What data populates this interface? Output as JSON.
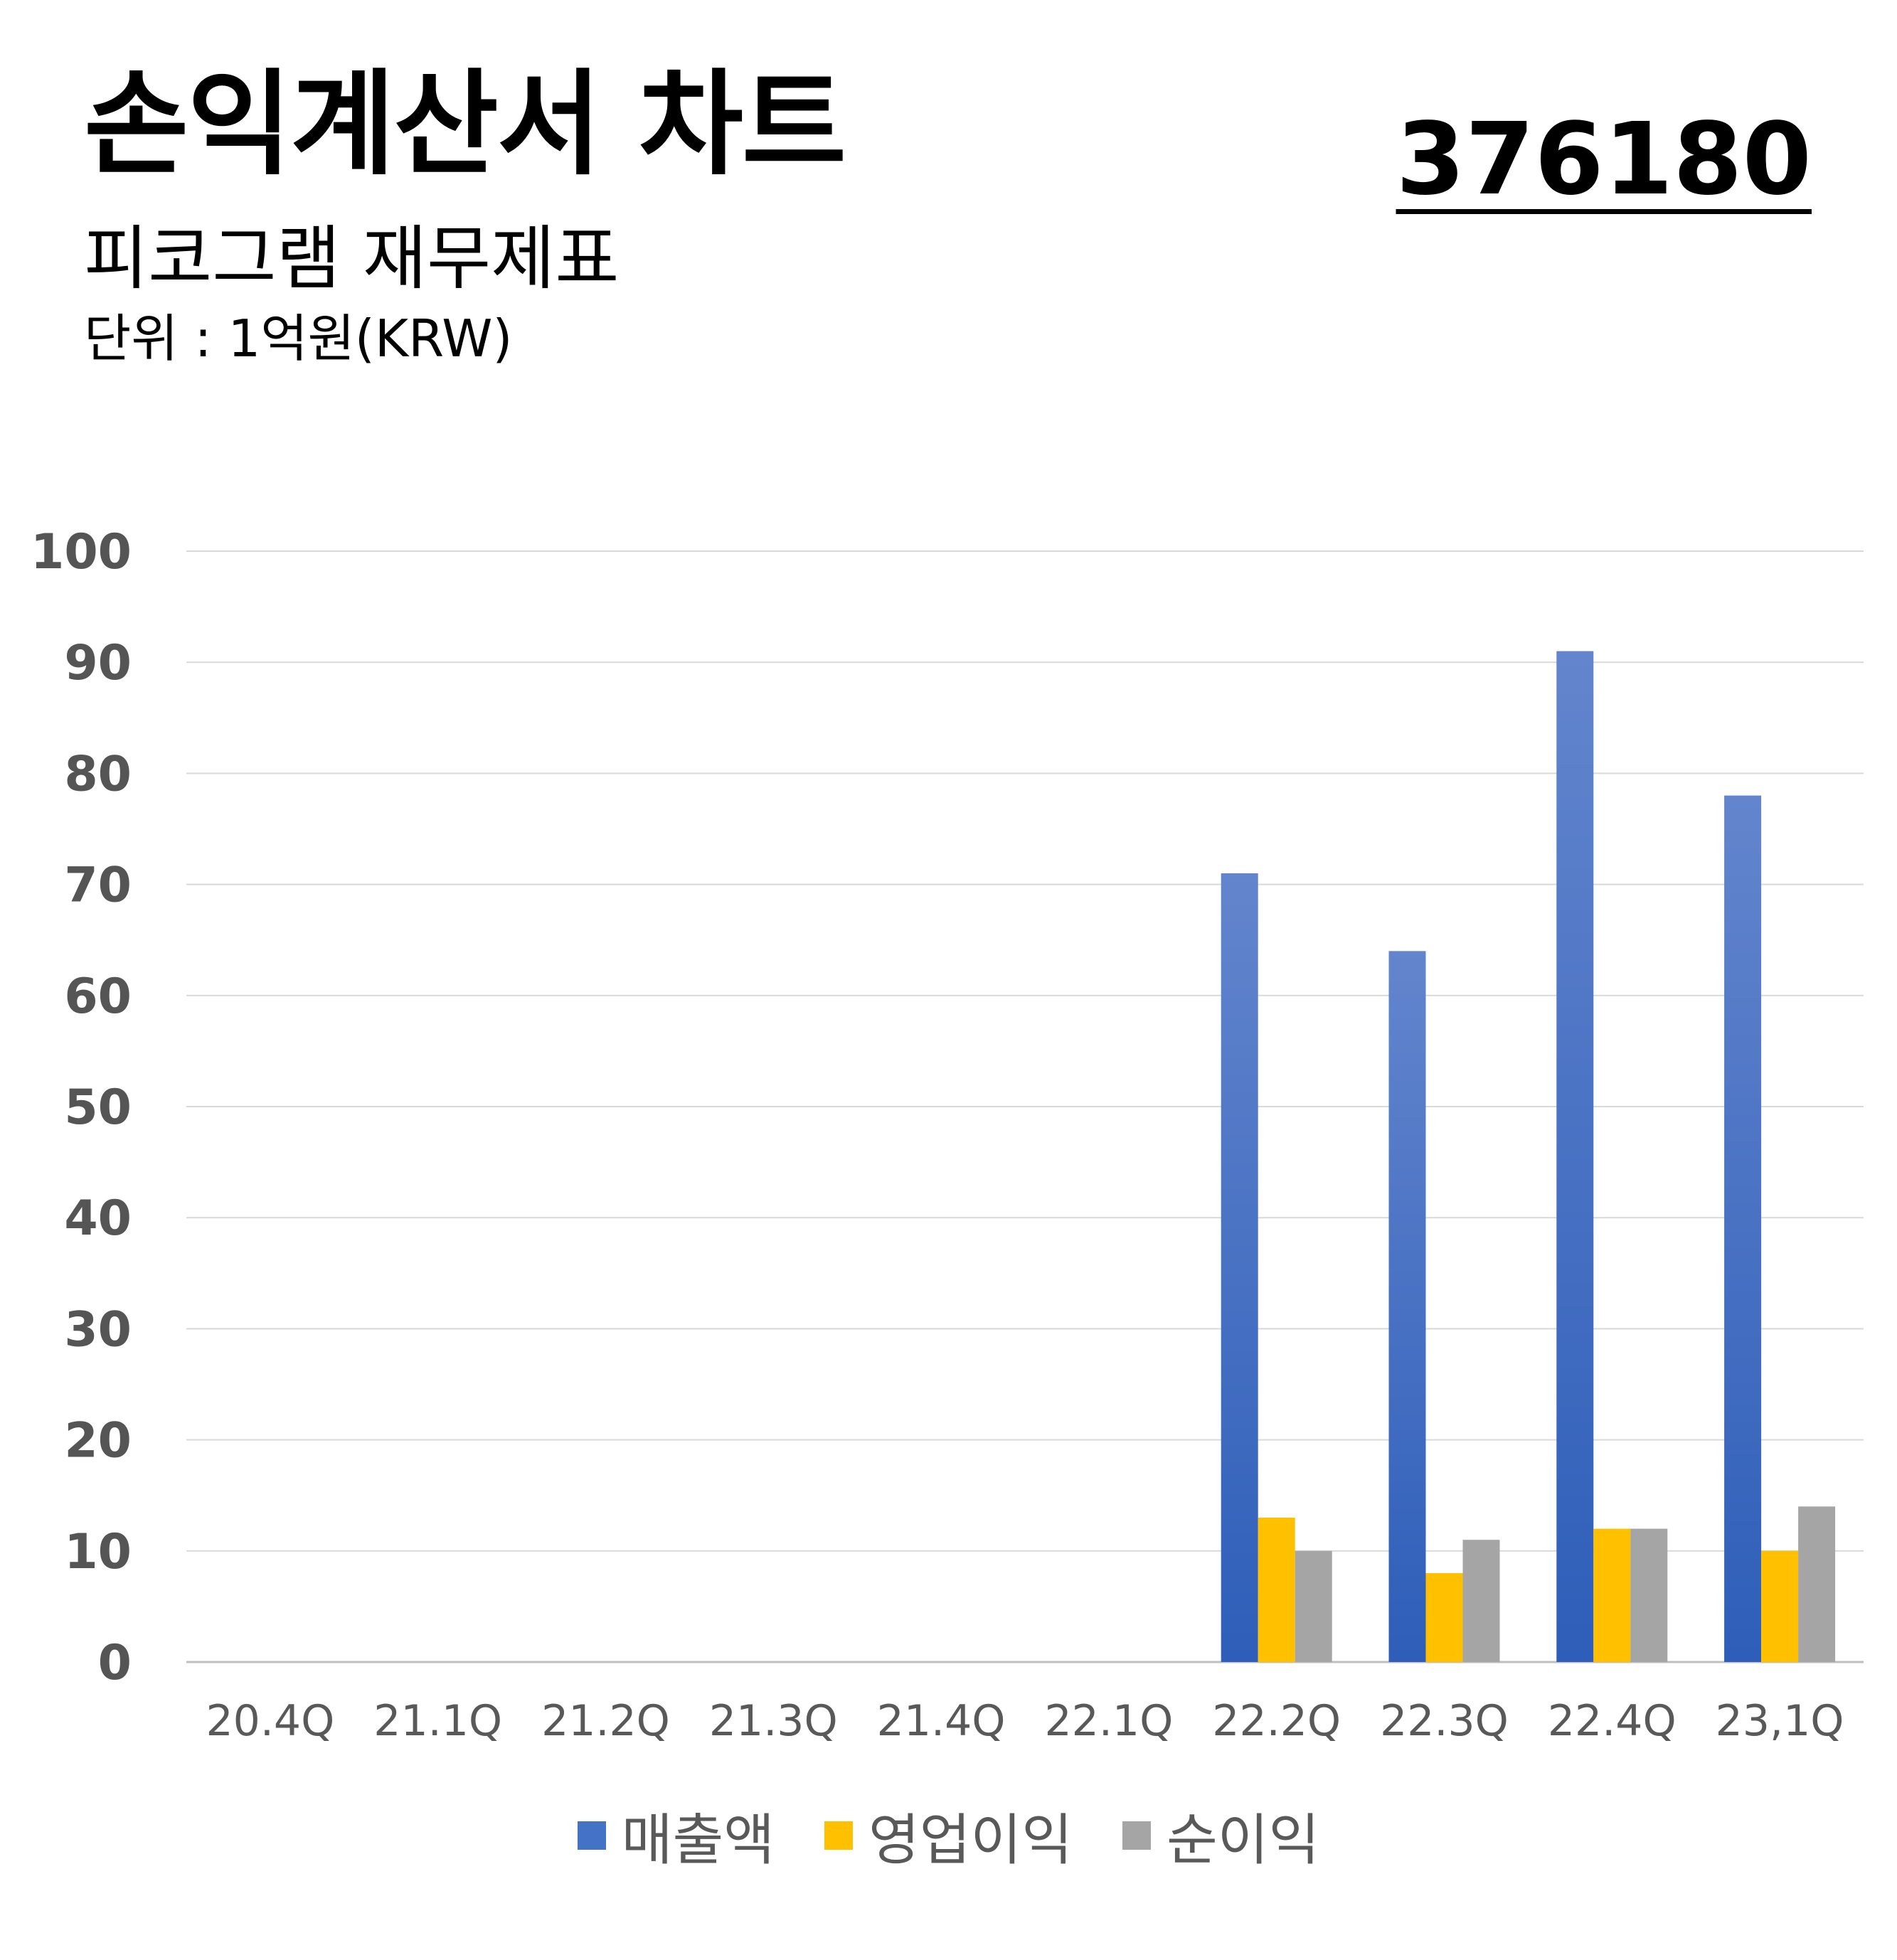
{
  "header": {
    "title": "손익계산서 차트",
    "subtitle": "피코그램 재무제표",
    "unit": "단위 : 1억원(KRW)",
    "code": "376180"
  },
  "chart_data": {
    "type": "bar",
    "categories": [
      "20.4Q",
      "21.1Q",
      "21.2Q",
      "21.3Q",
      "21.4Q",
      "22.1Q",
      "22.2Q",
      "22.3Q",
      "22.4Q",
      "23,1Q"
    ],
    "series": [
      {
        "name": "매출액",
        "color": "#4472C4",
        "values": [
          null,
          null,
          null,
          null,
          null,
          null,
          71,
          64,
          91,
          78
        ]
      },
      {
        "name": "영업이익",
        "color": "#FFC000",
        "values": [
          null,
          null,
          null,
          null,
          null,
          null,
          13,
          8,
          12,
          10
        ]
      },
      {
        "name": "순이익",
        "color": "#A5A5A5",
        "values": [
          null,
          null,
          null,
          null,
          null,
          null,
          10,
          11,
          12,
          14
        ]
      }
    ],
    "ylim": [
      0,
      100
    ],
    "yticks": [
      0,
      10,
      20,
      30,
      40,
      50,
      60,
      70,
      80,
      90,
      100
    ],
    "grid": true,
    "legend": "bottom"
  }
}
